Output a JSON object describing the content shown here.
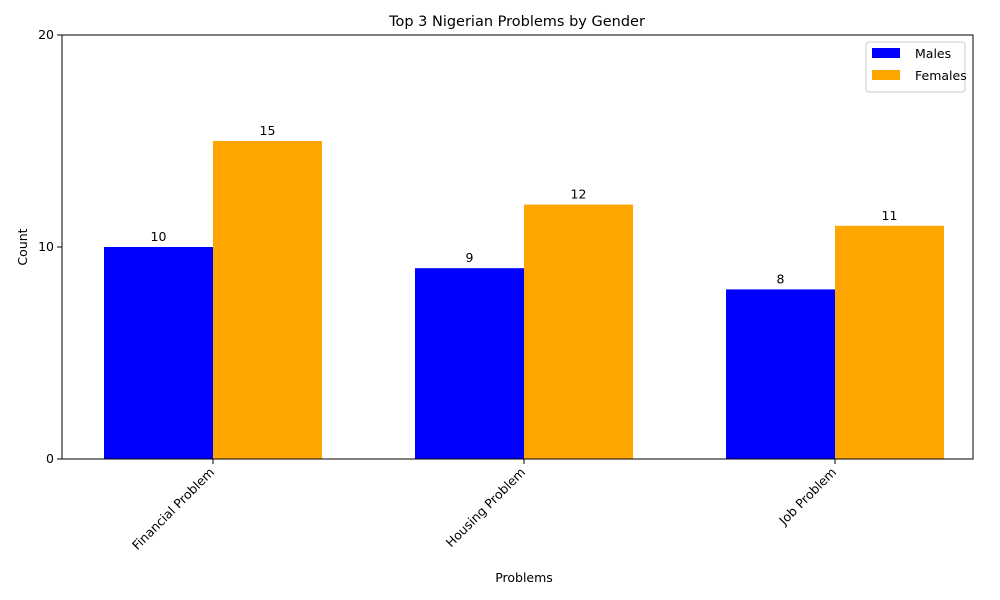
{
  "chart_data": {
    "type": "bar",
    "title": "Top 3 Nigerian Problems by Gender",
    "xlabel": "Problems",
    "ylabel": "Count",
    "categories": [
      "Financial Problem",
      "Housing Problem",
      "Job Problem"
    ],
    "series": [
      {
        "name": "Males",
        "values": [
          10,
          9,
          8
        ],
        "color": "#0000ff"
      },
      {
        "name": "Females",
        "values": [
          15,
          12,
          11
        ],
        "color": "#ffa500"
      }
    ],
    "ylim": [
      0,
      20
    ],
    "yticks": [
      0,
      10,
      20
    ],
    "grid": false,
    "legend_position": "top-right"
  }
}
